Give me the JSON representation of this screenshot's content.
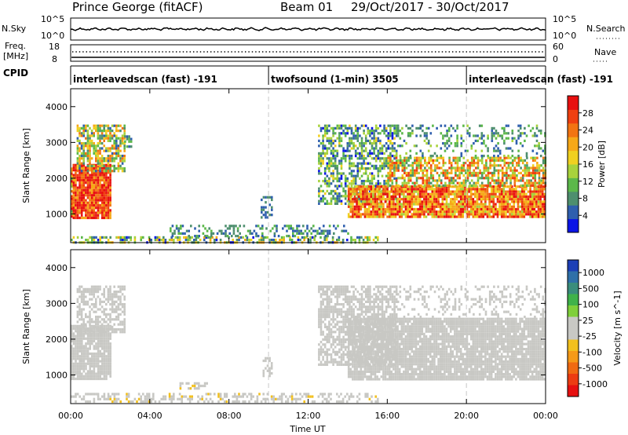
{
  "header": {
    "station": "Prince George (fitACF)",
    "beam": "Beam 01",
    "date_range": "29/Oct/2017 - 30/Oct/2017"
  },
  "nsky_panel": {
    "left_label": "N.Sky",
    "right_label": "N.Search",
    "left_ticks": [
      "10^5",
      "10^0"
    ],
    "right_ticks": [
      "10^5",
      "10^0"
    ]
  },
  "freq_panel": {
    "left_label_line1": "Freq.",
    "left_label_line2": "[MHz]",
    "right_label": "Nave",
    "left_ticks": [
      "18",
      "8"
    ],
    "right_ticks": [
      "60",
      "0"
    ]
  },
  "cpid": {
    "label": "CPID",
    "modes": [
      {
        "text": "interleavedscan (fast) -191",
        "start_hour": 0,
        "end_hour": 10
      },
      {
        "text": "twofsound (1-min) 3505",
        "start_hour": 10,
        "end_hour": 20
      },
      {
        "text": "interleavedscan (fast) -191",
        "start_hour": 20,
        "end_hour": 24
      }
    ]
  },
  "x_axis": {
    "label": "Time UT",
    "ticks": [
      "00:00",
      "04:00",
      "08:00",
      "12:00",
      "16:00",
      "20:00",
      "00:00"
    ],
    "tick_hours": [
      0,
      4,
      8,
      12,
      16,
      20,
      24
    ]
  },
  "colorbars": {
    "power": {
      "label": "Power [dB]",
      "tick_labels": [
        "4",
        "8",
        "12",
        "16",
        "20",
        "24",
        "28"
      ],
      "colors": [
        "#0a14e6",
        "#2f5fae",
        "#4e8f6e",
        "#5cb84a",
        "#a8d23c",
        "#f0d020",
        "#f6a818",
        "#f27412",
        "#ef4010",
        "#e81010"
      ]
    },
    "velocity": {
      "label": "Velocity [m s^-1]",
      "tick_labels": [
        "1000",
        "500",
        "100",
        "25",
        "-25",
        "-100",
        "-500",
        "-1000"
      ],
      "colors": [
        "#1c3fb6",
        "#2f70a8",
        "#3a8d7c",
        "#3fb24a",
        "#7fcf3a",
        "#c8c8c4",
        "#c8c8c4",
        "#f2c01e",
        "#f59a18",
        "#f06a12",
        "#ec3c12",
        "#e61010"
      ]
    }
  },
  "chart_data": [
    {
      "type": "heatmap",
      "name": "power",
      "ylabel": "Slant Range [km]",
      "xlabel": "",
      "xlim": [
        0,
        24
      ],
      "ylim": [
        200,
        4500
      ],
      "y_ticks": [
        1000,
        2000,
        3000,
        4000
      ],
      "x_unit": "hours UT",
      "colorbar_label": "Power [dB]",
      "value_range": [
        0,
        30
      ],
      "regions": [
        {
          "h0": 0.0,
          "h1": 0.1,
          "r0": 950,
          "r1": 2300,
          "value": 20,
          "spread": 10,
          "density": 0.9
        },
        {
          "h0": 0.1,
          "h1": 2.0,
          "r0": 900,
          "r1": 2400,
          "value": 26,
          "spread": 7,
          "density": 0.95
        },
        {
          "h0": 0.3,
          "h1": 2.7,
          "r0": 2200,
          "r1": 3500,
          "value": 14,
          "spread": 10,
          "density": 0.7
        },
        {
          "h0": 2.7,
          "h1": 3.1,
          "r0": 2900,
          "r1": 3200,
          "value": 8,
          "spread": 5,
          "density": 0.5
        },
        {
          "h0": 0.0,
          "h1": 15.5,
          "r0": 220,
          "r1": 380,
          "value": 10,
          "spread": 9,
          "density": 0.55
        },
        {
          "h0": 5.0,
          "h1": 14.0,
          "r0": 380,
          "r1": 700,
          "value": 7,
          "spread": 4,
          "density": 0.35
        },
        {
          "h0": 9.6,
          "h1": 10.2,
          "r0": 900,
          "r1": 1500,
          "value": 6,
          "spread": 3,
          "density": 0.5
        },
        {
          "h0": 12.5,
          "h1": 16.5,
          "r0": 1300,
          "r1": 3500,
          "value": 9,
          "spread": 7,
          "density": 0.55
        },
        {
          "h0": 14.0,
          "h1": 24.0,
          "r0": 900,
          "r1": 1800,
          "value": 22,
          "spread": 8,
          "density": 0.9
        },
        {
          "h0": 16.0,
          "h1": 24.0,
          "r0": 1800,
          "r1": 2600,
          "value": 17,
          "spread": 10,
          "density": 0.65
        },
        {
          "h0": 16.5,
          "h1": 24.0,
          "r0": 2600,
          "r1": 3500,
          "value": 8,
          "spread": 5,
          "density": 0.25
        }
      ]
    },
    {
      "type": "heatmap",
      "name": "velocity",
      "ylabel": "Slant Range [km]",
      "xlabel": "Time UT",
      "xlim": [
        0,
        24
      ],
      "ylim": [
        200,
        4500
      ],
      "y_ticks": [
        1000,
        2000,
        3000,
        4000
      ],
      "x_unit": "hours UT",
      "colorbar_label": "Velocity [m s^-1]",
      "value_range": [
        -1000,
        1000
      ],
      "regions": [
        {
          "h0": 0.0,
          "h1": 2.0,
          "r0": 900,
          "r1": 2400,
          "value": 0,
          "spread": 20,
          "density": 0.9
        },
        {
          "h0": 0.3,
          "h1": 2.7,
          "r0": 2200,
          "r1": 3500,
          "value": 0,
          "spread": 60,
          "density": 0.6
        },
        {
          "h0": 0.0,
          "h1": 15.5,
          "r0": 220,
          "r1": 500,
          "value": -50,
          "spread": 150,
          "density": 0.45
        },
        {
          "h0": 5.5,
          "h1": 7.0,
          "r0": 650,
          "r1": 800,
          "value": -120,
          "spread": 100,
          "density": 0.5
        },
        {
          "h0": 9.7,
          "h1": 10.2,
          "r0": 1000,
          "r1": 1500,
          "value": 0,
          "spread": 30,
          "density": 0.5
        },
        {
          "h0": 12.5,
          "h1": 16.5,
          "r0": 1300,
          "r1": 3500,
          "value": 0,
          "spread": 25,
          "density": 0.7
        },
        {
          "h0": 14.0,
          "h1": 24.0,
          "r0": 900,
          "r1": 2600,
          "value": 0,
          "spread": 20,
          "density": 0.9
        },
        {
          "h0": 16.5,
          "h1": 24.0,
          "r0": 2600,
          "r1": 3500,
          "value": 0,
          "spread": 60,
          "density": 0.25
        }
      ]
    }
  ]
}
